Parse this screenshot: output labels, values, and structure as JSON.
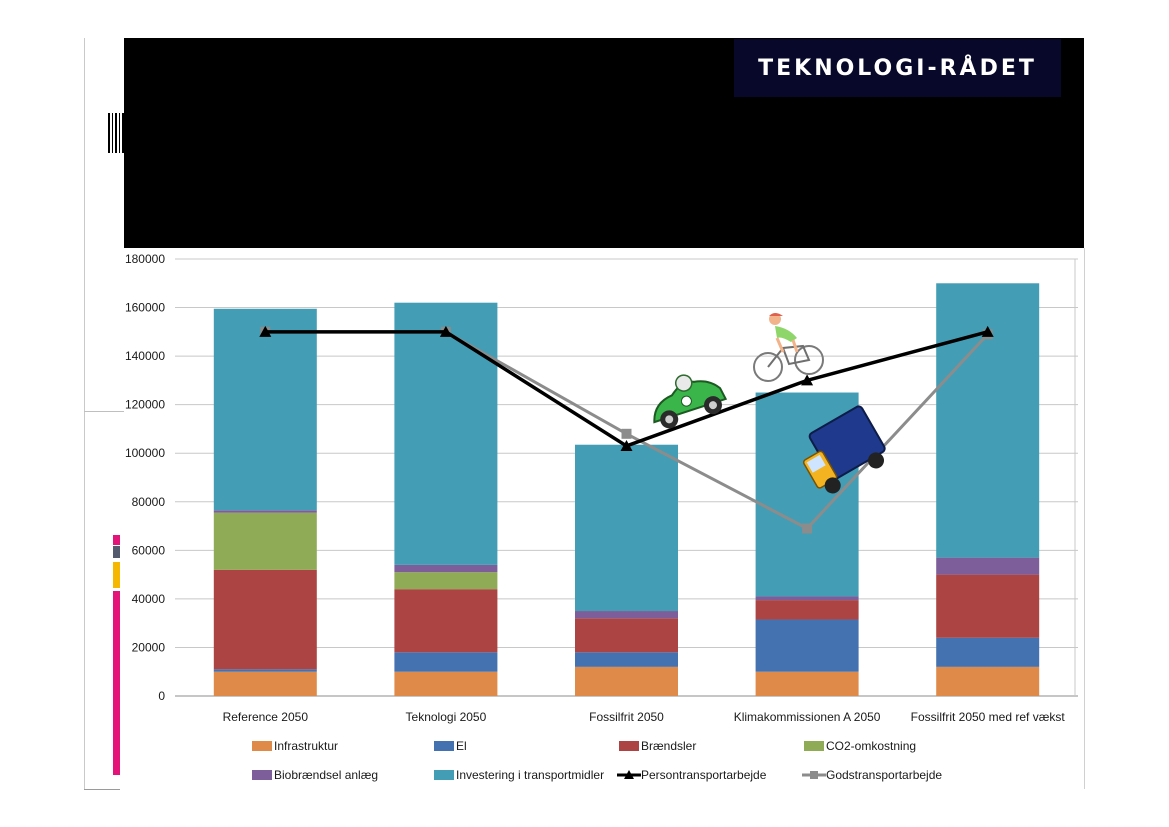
{
  "logo": {
    "text": "TEKNOLOGI-RÅDET"
  },
  "chart_data": {
    "type": "bar",
    "stacked": true,
    "categories": [
      "Reference 2050",
      "Teknologi 2050",
      "Fossilfrit 2050",
      "Klimakommissionen A 2050",
      "Fossilfrit 2050 med ref vækst"
    ],
    "ylim": [
      0,
      180000
    ],
    "yticks": [
      0,
      20000,
      40000,
      60000,
      80000,
      100000,
      120000,
      140000,
      160000,
      180000
    ],
    "grid": true,
    "legend_position": "bottom",
    "series": [
      {
        "name": "Infrastruktur",
        "kind": "bar",
        "color": "#e08a4a",
        "values": [
          10000,
          10000,
          12000,
          10000,
          12000
        ]
      },
      {
        "name": "El",
        "kind": "bar",
        "color": "#4472b0",
        "values": [
          1000,
          8000,
          6000,
          21500,
          12000
        ]
      },
      {
        "name": "Brændsler",
        "kind": "bar",
        "color": "#ab4442",
        "values": [
          41000,
          26000,
          14000,
          8000,
          26000
        ]
      },
      {
        "name": "CO2-omkostning",
        "kind": "bar",
        "color": "#8fab55",
        "values": [
          23500,
          7000,
          0,
          0,
          0
        ]
      },
      {
        "name": "Biobrændsel anlæg",
        "kind": "bar",
        "color": "#7d5e9a",
        "values": [
          1000,
          3000,
          3000,
          1500,
          7000
        ]
      },
      {
        "name": "Investering i transportmidler",
        "kind": "bar",
        "color": "#439eb5",
        "values": [
          83000,
          108000,
          68500,
          84000,
          113000
        ]
      },
      {
        "name": "Persontransportarbejde",
        "kind": "line",
        "color": "#000000",
        "marker": "triangle",
        "values": [
          150000,
          150000,
          103000,
          130000,
          150000
        ]
      },
      {
        "name": "Godstransportarbejde",
        "kind": "line",
        "color": "#8c8c8c",
        "marker": "square",
        "values": [
          150000,
          150000,
          108000,
          69000,
          149000
        ]
      }
    ]
  },
  "decorations": {
    "car": {
      "name": "green-race-car"
    },
    "bicycle": {
      "name": "cyclist"
    },
    "truck": {
      "name": "blue-truck"
    },
    "side_bar_colors": [
      "#e3137a",
      "#555b6e",
      "#f5b700",
      "#e3137a"
    ]
  }
}
